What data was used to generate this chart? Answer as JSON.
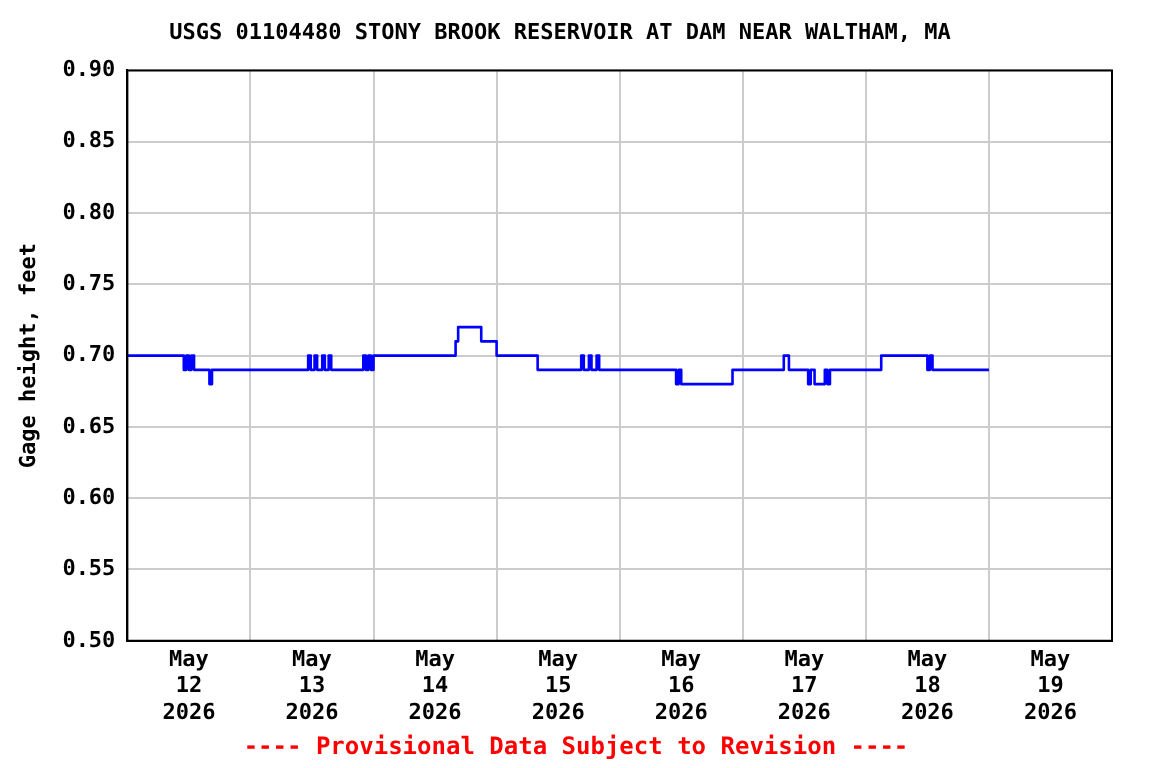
{
  "chart_data": {
    "type": "step",
    "title": "USGS 01104480 STONY BROOK RESERVOIR AT DAM NEAR WALTHAM, MA",
    "ylabel": "Gage height, feet",
    "annotations": [
      "---- Provisional Data Subject to Revision ----"
    ],
    "x": [
      "2026-05-12T00:00",
      "2026-05-12T11:00",
      "2026-05-12T11:30",
      "2026-05-12T12:00",
      "2026-05-12T12:30",
      "2026-05-12T13:00",
      "2026-05-12T16:00",
      "2026-05-12T16:30",
      "2026-05-13T11:15",
      "2026-05-13T11:45",
      "2026-05-13T12:30",
      "2026-05-13T13:00",
      "2026-05-13T14:00",
      "2026-05-13T14:30",
      "2026-05-13T15:15",
      "2026-05-13T15:45",
      "2026-05-13T16:15",
      "2026-05-13T22:00",
      "2026-05-13T22:30",
      "2026-05-13T23:00",
      "2026-05-13T23:30",
      "2026-05-14T00:00",
      "2026-05-14T16:00",
      "2026-05-14T16:30",
      "2026-05-14T21:00",
      "2026-05-15T00:00",
      "2026-05-15T08:00",
      "2026-05-15T16:30",
      "2026-05-15T17:00",
      "2026-05-15T18:00",
      "2026-05-15T18:30",
      "2026-05-15T19:30",
      "2026-05-15T20:00",
      "2026-05-15T20:45",
      "2026-05-16T11:00",
      "2026-05-16T11:30",
      "2026-05-16T12:00",
      "2026-05-16T21:30",
      "2026-05-16T22:00",
      "2026-05-17T08:00",
      "2026-05-17T09:00",
      "2026-05-17T12:45",
      "2026-05-17T13:15",
      "2026-05-17T14:00",
      "2026-05-17T16:00",
      "2026-05-17T16:30",
      "2026-05-17T17:00",
      "2026-05-17T19:00",
      "2026-05-18T03:00",
      "2026-05-18T12:00",
      "2026-05-18T12:30",
      "2026-05-18T13:00",
      "2026-05-19T00:00"
    ],
    "series": [
      {
        "color": "#0000ff",
        "values": [
          0.7,
          0.69,
          0.7,
          0.69,
          0.7,
          0.69,
          0.68,
          0.69,
          0.7,
          0.69,
          0.7,
          0.69,
          0.7,
          0.69,
          0.7,
          0.69,
          0.69,
          0.7,
          0.69,
          0.7,
          0.69,
          0.7,
          0.71,
          0.72,
          0.71,
          0.7,
          0.69,
          0.7,
          0.69,
          0.7,
          0.69,
          0.7,
          0.69,
          0.69,
          0.68,
          0.69,
          0.68,
          0.68,
          0.69,
          0.7,
          0.69,
          0.68,
          0.69,
          0.68,
          0.69,
          0.68,
          0.69,
          0.69,
          0.7,
          0.69,
          0.7,
          0.69,
          0.69
        ]
      }
    ],
    "xlim": [
      "2026-05-12T00:00",
      "2026-05-20T00:00"
    ],
    "xticks": [
      {
        "value": "2026-05-12T00:00",
        "label": null
      },
      {
        "value": "2026-05-12T12:00",
        "label": "May 12 2026"
      },
      {
        "value": "2026-05-13T00:00",
        "label": null
      },
      {
        "value": "2026-05-13T12:00",
        "label": "May 13 2026"
      },
      {
        "value": "2026-05-14T00:00",
        "label": null
      },
      {
        "value": "2026-05-14T12:00",
        "label": "May 14 2026"
      },
      {
        "value": "2026-05-15T00:00",
        "label": null
      },
      {
        "value": "2026-05-15T12:00",
        "label": "May 15 2026"
      },
      {
        "value": "2026-05-16T00:00",
        "label": null
      },
      {
        "value": "2026-05-16T12:00",
        "label": "May 16 2026"
      },
      {
        "value": "2026-05-17T00:00",
        "label": null
      },
      {
        "value": "2026-05-17T12:00",
        "label": "May 17 2026"
      },
      {
        "value": "2026-05-18T00:00",
        "label": null
      },
      {
        "value": "2026-05-18T12:00",
        "label": "May 18 2026"
      },
      {
        "value": "2026-05-19T00:00",
        "label": null
      },
      {
        "value": "2026-05-19T12:00",
        "label": "May 19 2026"
      },
      {
        "value": "2026-05-20T00:00",
        "label": null
      }
    ],
    "ylim": [
      0.5,
      0.9
    ],
    "yticks": [
      {
        "value": 0.5,
        "label": "0.50"
      },
      {
        "value": 0.55,
        "label": "0.55"
      },
      {
        "value": 0.6,
        "label": "0.60"
      },
      {
        "value": 0.65,
        "label": "0.65"
      },
      {
        "value": 0.7,
        "label": "0.70"
      },
      {
        "value": 0.75,
        "label": "0.75"
      },
      {
        "value": 0.8,
        "label": "0.80"
      },
      {
        "value": 0.85,
        "label": "0.85"
      },
      {
        "value": 0.9,
        "label": "0.90"
      }
    ],
    "grid": true,
    "legend": false,
    "marker": "none",
    "line_style": "solid"
  }
}
